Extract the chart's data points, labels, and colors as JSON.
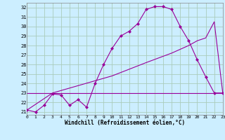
{
  "line1_x": [
    0,
    1,
    2,
    3,
    4,
    5,
    6,
    7,
    8,
    9,
    10,
    11,
    12,
    13,
    14,
    15,
    16,
    17,
    18,
    19,
    20,
    21,
    22,
    23
  ],
  "line1_y": [
    21.2,
    21.0,
    21.7,
    22.9,
    22.8,
    21.7,
    22.3,
    21.5,
    24.0,
    26.0,
    27.7,
    29.0,
    29.5,
    30.3,
    31.8,
    32.1,
    32.1,
    31.8,
    30.0,
    28.5,
    26.5,
    24.7,
    23.0,
    23.0
  ],
  "line2_x": [
    0,
    3,
    10,
    14,
    17,
    19,
    20,
    21,
    22,
    23
  ],
  "line2_y": [
    21.2,
    23.0,
    24.8,
    26.2,
    27.2,
    28.0,
    28.5,
    28.8,
    30.5,
    23.0
  ],
  "line3_x": [
    0,
    23
  ],
  "line3_y": [
    23.0,
    23.0
  ],
  "color": "#990099",
  "bg_color": "#cceeff",
  "grid_color": "#aaccbb",
  "xlabel": "Windchill (Refroidissement éolien,°C)",
  "xlim": [
    0,
    23
  ],
  "ylim": [
    20.7,
    32.5
  ],
  "yticks": [
    21,
    22,
    23,
    24,
    25,
    26,
    27,
    28,
    29,
    30,
    31,
    32
  ],
  "xticks": [
    0,
    1,
    2,
    3,
    4,
    5,
    6,
    7,
    8,
    9,
    10,
    11,
    12,
    13,
    14,
    15,
    16,
    17,
    18,
    19,
    20,
    21,
    22,
    23
  ]
}
